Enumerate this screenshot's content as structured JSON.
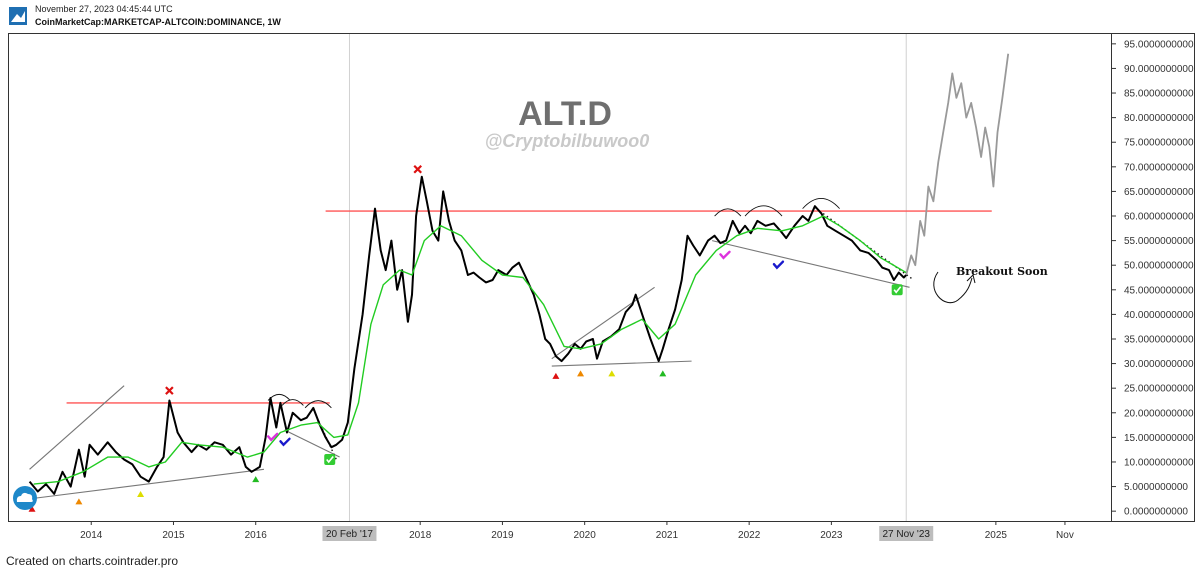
{
  "header": {
    "date_line": "November 27, 2023 04:45:44 UTC",
    "symbol_line": "CoinMarketCap:MARKETCAP-ALTCOIN:DOMINANCE, 1W"
  },
  "footer": {
    "text": "Created on charts.cointrader.pro"
  },
  "icons": {
    "logo": "cointrader-logo-icon",
    "cloud": "cloud-icon"
  },
  "chart_data": {
    "type": "line",
    "watermark_title": "ALT.D",
    "watermark_handle": "@Cryptobilbuwoo0",
    "annotation_breakout": "Breakout Soon",
    "yticks": [
      "95.0000000000",
      "90.0000000000",
      "85.0000000000",
      "80.0000000000",
      "75.0000000000",
      "70.0000000000",
      "65.0000000000",
      "60.0000000000",
      "55.0000000000",
      "50.0000000000",
      "45.0000000000",
      "40.0000000000",
      "35.0000000000",
      "30.0000000000",
      "25.0000000000",
      "20.0000000000",
      "15.0000000000",
      "10.0000000000",
      "5.0000000000",
      "0.0000000000"
    ],
    "ylim": [
      -2,
      97
    ],
    "xlim": [
      2013.0,
      2026.4
    ],
    "xticks": [
      {
        "label": "2014",
        "x": 2014.0
      },
      {
        "label": "2015",
        "x": 2015.0
      },
      {
        "label": "2016",
        "x": 2016.0
      },
      {
        "label": "2018",
        "x": 2018.0
      },
      {
        "label": "2019",
        "x": 2019.0
      },
      {
        "label": "2020",
        "x": 2020.0
      },
      {
        "label": "2021",
        "x": 2021.0
      },
      {
        "label": "2022",
        "x": 2022.0
      },
      {
        "label": "2023",
        "x": 2023.0
      },
      {
        "label": "2025",
        "x": 2025.0
      },
      {
        "label": "Nov",
        "x": 2025.84
      }
    ],
    "highlight_labels": [
      {
        "label": "20 Feb '17",
        "x": 2017.14
      },
      {
        "label": "27 Nov '23",
        "x": 2023.91
      }
    ],
    "colors": {
      "price": "#000000",
      "ma": "#22cc22",
      "projection": "#999999",
      "resistance": "#ff5555",
      "trendline": "#777777",
      "x_mark": "#dd1111",
      "check_box": "#33cc33",
      "check_pink": "#dd33dd",
      "check_blue": "#1a1acc"
    },
    "series": [
      {
        "key": "price",
        "points": [
          [
            2013.25,
            6.0
          ],
          [
            2013.35,
            4.0
          ],
          [
            2013.45,
            5.5
          ],
          [
            2013.55,
            3.5
          ],
          [
            2013.65,
            8.0
          ],
          [
            2013.75,
            5.0
          ],
          [
            2013.85,
            12.5
          ],
          [
            2013.92,
            7.0
          ],
          [
            2013.98,
            13.5
          ],
          [
            2014.08,
            11.5
          ],
          [
            2014.2,
            14.0
          ],
          [
            2014.3,
            12.0
          ],
          [
            2014.4,
            10.5
          ],
          [
            2014.5,
            9.5
          ],
          [
            2014.6,
            7.0
          ],
          [
            2014.7,
            6.0
          ],
          [
            2014.8,
            9.0
          ],
          [
            2014.88,
            11.0
          ],
          [
            2014.95,
            22.5
          ],
          [
            2015.05,
            16.0
          ],
          [
            2015.12,
            14.0
          ],
          [
            2015.22,
            12.0
          ],
          [
            2015.3,
            13.5
          ],
          [
            2015.4,
            12.5
          ],
          [
            2015.5,
            14.0
          ],
          [
            2015.6,
            13.5
          ],
          [
            2015.7,
            11.5
          ],
          [
            2015.8,
            13.0
          ],
          [
            2015.88,
            9.0
          ],
          [
            2015.95,
            8.0
          ],
          [
            2016.05,
            9.0
          ],
          [
            2016.12,
            15.0
          ],
          [
            2016.18,
            23.0
          ],
          [
            2016.25,
            17.0
          ],
          [
            2016.3,
            22.0
          ],
          [
            2016.38,
            16.0
          ],
          [
            2016.45,
            20.0
          ],
          [
            2016.55,
            18.5
          ],
          [
            2016.62,
            19.0
          ],
          [
            2016.7,
            21.0
          ],
          [
            2016.78,
            17.5
          ],
          [
            2016.85,
            15.0
          ],
          [
            2016.92,
            13.0
          ],
          [
            2016.98,
            13.5
          ],
          [
            2017.05,
            14.5
          ],
          [
            2017.12,
            18.0
          ],
          [
            2017.2,
            29.0
          ],
          [
            2017.3,
            40.0
          ],
          [
            2017.38,
            52.0
          ],
          [
            2017.45,
            61.5
          ],
          [
            2017.52,
            53.0
          ],
          [
            2017.58,
            49.0
          ],
          [
            2017.65,
            55.0
          ],
          [
            2017.72,
            45.0
          ],
          [
            2017.78,
            49.0
          ],
          [
            2017.85,
            38.5
          ],
          [
            2017.9,
            44.0
          ],
          [
            2017.95,
            60.0
          ],
          [
            2018.02,
            68.0
          ],
          [
            2018.08,
            63.0
          ],
          [
            2018.15,
            57.0
          ],
          [
            2018.22,
            55.0
          ],
          [
            2018.28,
            65.0
          ],
          [
            2018.35,
            59.0
          ],
          [
            2018.42,
            55.0
          ],
          [
            2018.5,
            53.0
          ],
          [
            2018.58,
            48.0
          ],
          [
            2018.65,
            48.5
          ],
          [
            2018.72,
            47.5
          ],
          [
            2018.8,
            46.5
          ],
          [
            2018.88,
            47.0
          ],
          [
            2018.95,
            49.0
          ],
          [
            2019.05,
            48.0
          ],
          [
            2019.12,
            49.5
          ],
          [
            2019.2,
            50.5
          ],
          [
            2019.3,
            47.0
          ],
          [
            2019.38,
            44.0
          ],
          [
            2019.45,
            40.0
          ],
          [
            2019.52,
            35.0
          ],
          [
            2019.58,
            34.0
          ],
          [
            2019.65,
            31.5
          ],
          [
            2019.72,
            30.5
          ],
          [
            2019.8,
            32.0
          ],
          [
            2019.88,
            34.0
          ],
          [
            2019.95,
            33.0
          ],
          [
            2020.02,
            34.5
          ],
          [
            2020.1,
            35.0
          ],
          [
            2020.15,
            31.0
          ],
          [
            2020.22,
            34.5
          ],
          [
            2020.32,
            35.5
          ],
          [
            2020.42,
            37.0
          ],
          [
            2020.5,
            40.5
          ],
          [
            2020.58,
            42.0
          ],
          [
            2020.62,
            44.0
          ],
          [
            2020.7,
            40.0
          ],
          [
            2020.8,
            35.0
          ],
          [
            2020.9,
            30.5
          ],
          [
            2020.95,
            33.0
          ],
          [
            2021.02,
            37.0
          ],
          [
            2021.1,
            41.0
          ],
          [
            2021.18,
            47.0
          ],
          [
            2021.25,
            56.0
          ],
          [
            2021.32,
            54.0
          ],
          [
            2021.4,
            52.0
          ],
          [
            2021.5,
            55.0
          ],
          [
            2021.58,
            56.0
          ],
          [
            2021.65,
            54.5
          ],
          [
            2021.72,
            55.0
          ],
          [
            2021.8,
            59.0
          ],
          [
            2021.88,
            56.5
          ],
          [
            2021.95,
            58.0
          ],
          [
            2022.02,
            56.5
          ],
          [
            2022.1,
            59.0
          ],
          [
            2022.2,
            58.0
          ],
          [
            2022.3,
            58.5
          ],
          [
            2022.38,
            57.0
          ],
          [
            2022.45,
            55.5
          ],
          [
            2022.55,
            58.0
          ],
          [
            2022.65,
            60.0
          ],
          [
            2022.72,
            59.0
          ],
          [
            2022.8,
            62.0
          ],
          [
            2022.88,
            60.5
          ],
          [
            2022.95,
            58.0
          ],
          [
            2023.05,
            57.0
          ],
          [
            2023.15,
            56.0
          ],
          [
            2023.25,
            55.0
          ],
          [
            2023.35,
            53.0
          ],
          [
            2023.45,
            52.5
          ],
          [
            2023.55,
            51.0
          ],
          [
            2023.62,
            49.5
          ],
          [
            2023.7,
            49.0
          ],
          [
            2023.76,
            47.0
          ],
          [
            2023.82,
            48.5
          ],
          [
            2023.88,
            47.5
          ],
          [
            2023.91,
            48.0
          ]
        ]
      },
      {
        "key": "ma",
        "points": [
          [
            2013.3,
            5.5
          ],
          [
            2013.6,
            6.0
          ],
          [
            2013.9,
            8.0
          ],
          [
            2014.2,
            11.0
          ],
          [
            2014.45,
            11.0
          ],
          [
            2014.7,
            9.0
          ],
          [
            2014.9,
            10.0
          ],
          [
            2015.1,
            14.0
          ],
          [
            2015.3,
            13.5
          ],
          [
            2015.6,
            13.0
          ],
          [
            2015.9,
            11.0
          ],
          [
            2016.1,
            12.0
          ],
          [
            2016.3,
            16.0
          ],
          [
            2016.55,
            17.5
          ],
          [
            2016.75,
            18.0
          ],
          [
            2016.95,
            15.0
          ],
          [
            2017.12,
            15.5
          ],
          [
            2017.25,
            22.0
          ],
          [
            2017.4,
            38.0
          ],
          [
            2017.55,
            46.0
          ],
          [
            2017.75,
            49.0
          ],
          [
            2017.9,
            48.0
          ],
          [
            2018.05,
            55.0
          ],
          [
            2018.25,
            58.0
          ],
          [
            2018.5,
            56.0
          ],
          [
            2018.75,
            51.0
          ],
          [
            2019.0,
            48.0
          ],
          [
            2019.25,
            47.5
          ],
          [
            2019.5,
            42.0
          ],
          [
            2019.75,
            33.5
          ],
          [
            2019.95,
            33.0
          ],
          [
            2020.2,
            34.0
          ],
          [
            2020.45,
            37.0
          ],
          [
            2020.7,
            39.0
          ],
          [
            2020.9,
            35.0
          ],
          [
            2021.1,
            38.0
          ],
          [
            2021.35,
            48.0
          ],
          [
            2021.6,
            53.0
          ],
          [
            2021.85,
            56.0
          ],
          [
            2022.1,
            57.5
          ],
          [
            2022.4,
            57.0
          ],
          [
            2022.65,
            58.0
          ],
          [
            2022.9,
            60.0
          ],
          [
            2023.1,
            58.0
          ],
          [
            2023.35,
            55.0
          ],
          [
            2023.6,
            51.5
          ],
          [
            2023.91,
            48.5
          ]
        ]
      },
      {
        "key": "projection",
        "points": [
          [
            2023.91,
            48.0
          ],
          [
            2023.97,
            52.0
          ],
          [
            2024.02,
            50.0
          ],
          [
            2024.08,
            59.0
          ],
          [
            2024.13,
            56.0
          ],
          [
            2024.18,
            66.0
          ],
          [
            2024.24,
            63.0
          ],
          [
            2024.3,
            71.0
          ],
          [
            2024.36,
            77.0
          ],
          [
            2024.42,
            83.0
          ],
          [
            2024.47,
            89.0
          ],
          [
            2024.52,
            84.0
          ],
          [
            2024.58,
            87.0
          ],
          [
            2024.64,
            80.0
          ],
          [
            2024.7,
            83.0
          ],
          [
            2024.76,
            78.0
          ],
          [
            2024.82,
            72.0
          ],
          [
            2024.87,
            78.0
          ],
          [
            2024.92,
            74.0
          ],
          [
            2024.97,
            66.0
          ],
          [
            2025.02,
            77.0
          ],
          [
            2025.08,
            84.0
          ],
          [
            2025.15,
            93.0
          ]
        ]
      }
    ],
    "lines": [
      {
        "kind": "resistance",
        "p1": [
          2013.7,
          22.0
        ],
        "p2": [
          2016.9,
          22.0
        ]
      },
      {
        "kind": "resistance",
        "p1": [
          2016.85,
          61.0
        ],
        "p2": [
          2024.95,
          61.0
        ]
      },
      {
        "kind": "trendline",
        "p1": [
          2013.25,
          8.5
        ],
        "p2": [
          2014.4,
          25.5
        ]
      },
      {
        "kind": "trendline",
        "p1": [
          2013.25,
          2.5
        ],
        "p2": [
          2016.1,
          8.5
        ]
      },
      {
        "kind": "trendline",
        "p1": [
          2016.35,
          16.5
        ],
        "p2": [
          2017.02,
          11.0
        ]
      },
      {
        "kind": "trendline",
        "p1": [
          2019.6,
          31.0
        ],
        "p2": [
          2020.85,
          45.5
        ]
      },
      {
        "kind": "trendline",
        "p1": [
          2019.6,
          29.5
        ],
        "p2": [
          2021.3,
          30.5
        ]
      },
      {
        "kind": "trendline",
        "p1": [
          2021.55,
          55.0
        ],
        "p2": [
          2023.95,
          45.5
        ]
      }
    ],
    "dotted_lines": [
      {
        "p1": [
          2016.72,
          20.0
        ],
        "p2": [
          2016.98,
          10.5
        ]
      },
      {
        "p1": [
          2022.9,
          60.5
        ],
        "p2": [
          2024.0,
          47.0
        ]
      }
    ],
    "arcs": [
      {
        "x1": 2016.15,
        "x2": 2016.42,
        "y": 22.5
      },
      {
        "x1": 2016.32,
        "x2": 2016.58,
        "y": 21.5
      },
      {
        "x1": 2016.6,
        "x2": 2016.92,
        "y": 21.0
      },
      {
        "x1": 2021.58,
        "x2": 2021.9,
        "y": 60.0
      },
      {
        "x1": 2021.95,
        "x2": 2022.4,
        "y": 60.0
      },
      {
        "x1": 2022.65,
        "x2": 2023.1,
        "y": 61.5
      }
    ],
    "markers": [
      {
        "shape": "triangle",
        "color": "#dd1111",
        "x": 2013.28,
        "y": 0.5
      },
      {
        "shape": "triangle",
        "color": "#ee8800",
        "x": 2013.85,
        "y": 2.0
      },
      {
        "shape": "triangle",
        "color": "#dddd00",
        "x": 2014.6,
        "y": 3.5
      },
      {
        "shape": "triangle",
        "color": "#22bb22",
        "x": 2016.0,
        "y": 6.5
      },
      {
        "shape": "triangle",
        "color": "#dd1111",
        "x": 2019.65,
        "y": 27.5
      },
      {
        "shape": "triangle",
        "color": "#ee8800",
        "x": 2019.95,
        "y": 28.0
      },
      {
        "shape": "triangle",
        "color": "#dddd00",
        "x": 2020.33,
        "y": 28.0
      },
      {
        "shape": "triangle",
        "color": "#22bb22",
        "x": 2020.95,
        "y": 28.0
      },
      {
        "shape": "x",
        "color": "#dd1111",
        "x": 2014.95,
        "y": 24.5
      },
      {
        "shape": "x",
        "color": "#dd1111",
        "x": 2017.97,
        "y": 69.5
      },
      {
        "shape": "check_box",
        "color": "#33cc33",
        "x": 2016.9,
        "y": 10.5
      },
      {
        "shape": "check_box",
        "color": "#33cc33",
        "x": 2023.8,
        "y": 45.0
      },
      {
        "shape": "check",
        "color": "#dd33dd",
        "x": 2016.2,
        "y": 15.0
      },
      {
        "shape": "check",
        "color": "#1a1acc",
        "x": 2016.35,
        "y": 14.0
      },
      {
        "shape": "check",
        "color": "#dd33dd",
        "x": 2021.7,
        "y": 52.0
      },
      {
        "shape": "check",
        "color": "#1a1acc",
        "x": 2022.35,
        "y": 50.0
      }
    ]
  }
}
